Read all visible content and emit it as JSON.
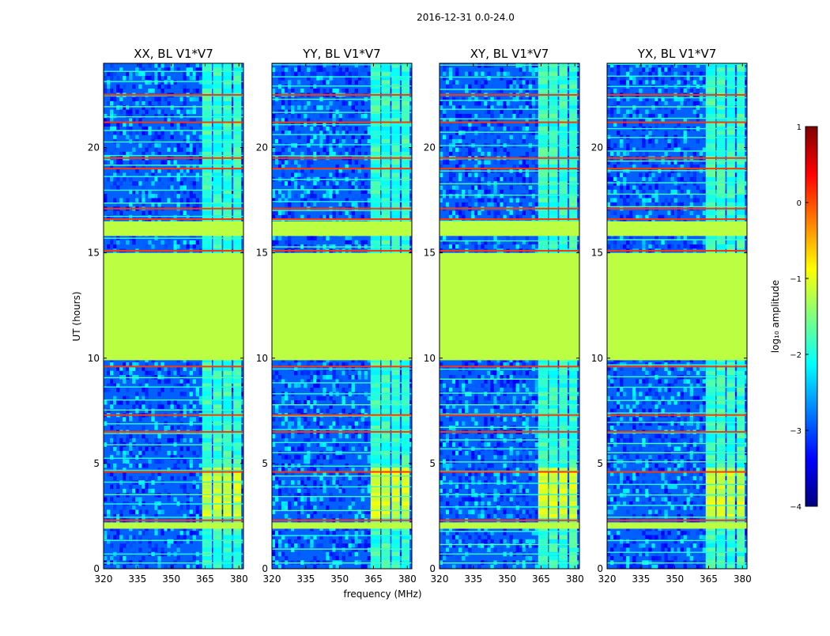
{
  "figure": {
    "suptitle": "2016-12-31 0.0-24.0"
  },
  "chart_data": {
    "type": "heatmap",
    "shared_xlabel": "frequency (MHz)",
    "shared_ylabel": "UT (hours)",
    "xlim": [
      320,
      382
    ],
    "ylim": [
      0,
      24
    ],
    "xticks": [
      320,
      335,
      350,
      365,
      380
    ],
    "yticks": [
      0,
      5,
      10,
      15,
      20
    ],
    "panels": [
      {
        "title": "XX, BL V1*V7"
      },
      {
        "title": "YY, BL V1*V7"
      },
      {
        "title": "XY, BL V1*V7"
      },
      {
        "title": "YX, BL V1*V7"
      }
    ],
    "bright_channel_bands_mhz": [
      [
        363.7,
        368.0
      ],
      [
        368.5,
        372.4
      ],
      [
        373.0,
        376.7
      ],
      [
        377.5,
        381.0
      ]
    ],
    "flagged_time_blocks_hours": [
      [
        9.9,
        15.0
      ],
      [
        15.8,
        16.5
      ],
      [
        1.9,
        2.2
      ]
    ],
    "rfi_time_lines_hours": [
      2.3,
      4.6,
      6.5,
      7.3,
      9.6,
      15.1,
      16.6,
      17.1,
      19.0,
      19.5,
      21.2,
      22.5
    ],
    "colorbar": {
      "label": "log₁₀ amplitude",
      "range": [
        -4,
        1
      ],
      "ticks": [
        1,
        0,
        -1,
        -2,
        -3,
        -4
      ],
      "tick_labels": [
        "1",
        "0",
        "−1",
        "−2",
        "−3",
        "−4"
      ],
      "colormap": [
        "#00007f",
        "#0000ff",
        "#007fff",
        "#00ffff",
        "#7fff7f",
        "#ffff00",
        "#ff7f00",
        "#ff0000",
        "#7f0000"
      ]
    },
    "background_level": -2.9,
    "flag_level": -1.2
  }
}
